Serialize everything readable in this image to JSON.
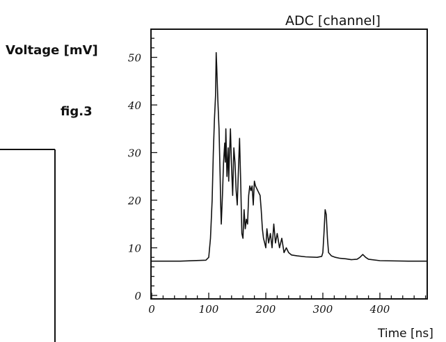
{
  "chart_data": {
    "type": "line",
    "figure_label": "fig.3",
    "top_label": "ADC [channel]",
    "ylabel": "Voltage [mV]",
    "xlabel": "Time [ns]",
    "xlim": [
      0,
      500
    ],
    "ylim": [
      0,
      55
    ],
    "x_ticks": [
      "0",
      "100",
      "200",
      "300",
      "400"
    ],
    "y_ticks": [
      "0",
      "10",
      "20",
      "30",
      "40",
      "50"
    ],
    "grid": false,
    "series": [
      {
        "x": [
          0,
          50,
          95,
          100,
          103,
          106,
          108,
          110,
          112,
          113,
          114,
          116,
          118,
          120,
          121,
          122,
          124,
          126,
          128,
          129,
          130,
          132,
          134,
          135,
          136,
          138,
          140,
          142,
          144,
          146,
          148,
          150,
          152,
          154,
          156,
          158,
          160,
          162,
          164,
          166,
          168,
          170,
          172,
          174,
          176,
          178,
          180,
          182,
          186,
          190,
          192,
          194,
          196,
          198,
          200,
          202,
          205,
          208,
          211,
          214,
          217,
          220,
          224,
          228,
          232,
          236,
          240,
          245,
          255,
          270,
          290,
          298,
          300,
          302,
          304,
          306,
          308,
          310,
          315,
          322,
          330,
          340,
          350,
          360,
          365,
          370,
          375,
          380,
          400,
          450,
          500
        ],
        "y": [
          7.2,
          7.2,
          7.4,
          8,
          12,
          20,
          30,
          37,
          42,
          51,
          48,
          41,
          35,
          25,
          19,
          15,
          21,
          28,
          32,
          28,
          35,
          25,
          31,
          24,
          28,
          35,
          27,
          21,
          31,
          28,
          22,
          19,
          26,
          33,
          24,
          13,
          12,
          18,
          14,
          16,
          15,
          21,
          23,
          22,
          23,
          19,
          24,
          23,
          22,
          21,
          18,
          14,
          12,
          11,
          10,
          14,
          11,
          13,
          10,
          15,
          11,
          13,
          10,
          12,
          9,
          10,
          9,
          8.5,
          8.3,
          8.1,
          8.0,
          8.2,
          9,
          13,
          18,
          17,
          12,
          9,
          8.3,
          8.0,
          7.8,
          7.7,
          7.5,
          7.6,
          8,
          8.6,
          8,
          7.6,
          7.3,
          7.2,
          7.2
        ]
      }
    ]
  },
  "left_panel": {}
}
